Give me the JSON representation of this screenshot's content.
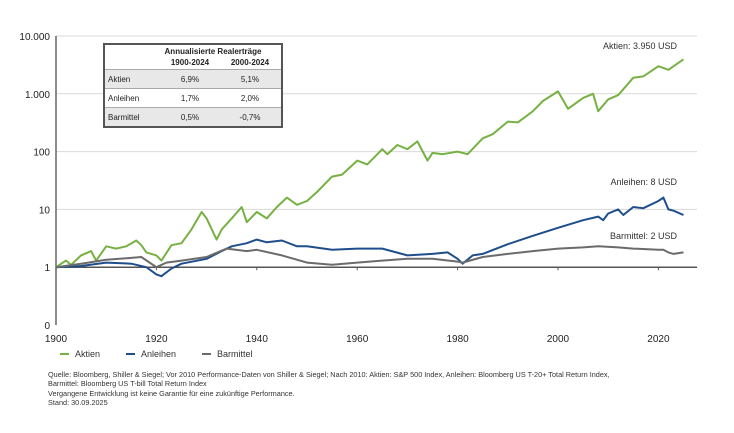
{
  "chart_data": {
    "type": "line",
    "y_scale": "log",
    "ylim": [
      0.1,
      10000
    ],
    "xlim": [
      1900,
      2027
    ],
    "y_ticks": [
      {
        "v": 10000,
        "label": "10.000"
      },
      {
        "v": 1000,
        "label": "1.000"
      },
      {
        "v": 100,
        "label": "100"
      },
      {
        "v": 10,
        "label": "10"
      },
      {
        "v": 1,
        "label": "1"
      },
      {
        "v": 0.1,
        "label": "0"
      }
    ],
    "x_ticks": [
      1900,
      1920,
      1940,
      1960,
      1980,
      2000,
      2020
    ],
    "grid": true,
    "legend_position": "bottom-left",
    "series": [
      {
        "name": "Aktien",
        "color": "#77b043",
        "end_label": "Aktien: 3.950 USD",
        "x": [
          1900,
          1902,
          1903,
          1905,
          1907,
          1908,
          1910,
          1912,
          1914,
          1916,
          1917,
          1918,
          1920,
          1921,
          1923,
          1925,
          1927,
          1929,
          1930,
          1932,
          1933,
          1935,
          1937,
          1938,
          1940,
          1942,
          1944,
          1946,
          1948,
          1950,
          1952,
          1955,
          1957,
          1960,
          1962,
          1965,
          1966,
          1968,
          1970,
          1972,
          1974,
          1975,
          1977,
          1980,
          1982,
          1985,
          1987,
          1990,
          1992,
          1995,
          1997,
          2000,
          2002,
          2005,
          2007,
          2008,
          2010,
          2012,
          2015,
          2017,
          2020,
          2022,
          2025
        ],
        "y": [
          1,
          1.3,
          1.1,
          1.6,
          1.9,
          1.3,
          2.3,
          2.1,
          2.3,
          2.9,
          2.4,
          1.8,
          1.6,
          1.3,
          2.4,
          2.6,
          4.5,
          9,
          7,
          3,
          4.5,
          7,
          11,
          6,
          9,
          7,
          11,
          16,
          12,
          14,
          20,
          37,
          40,
          70,
          60,
          110,
          90,
          130,
          110,
          150,
          70,
          95,
          90,
          100,
          90,
          170,
          200,
          330,
          320,
          500,
          750,
          1100,
          550,
          850,
          1000,
          500,
          800,
          950,
          1900,
          2000,
          3000,
          2600,
          3950
        ]
      },
      {
        "name": "Anleihen",
        "color": "#1f4e8c",
        "end_label": "Anleihen: 8 USD",
        "x": [
          1900,
          1905,
          1910,
          1915,
          1918,
          1920,
          1921,
          1923,
          1925,
          1930,
          1933,
          1935,
          1938,
          1940,
          1942,
          1945,
          1948,
          1950,
          1955,
          1960,
          1965,
          1970,
          1975,
          1978,
          1980,
          1981,
          1983,
          1985,
          1990,
          1995,
          2000,
          2005,
          2008,
          2009,
          2010,
          2012,
          2013,
          2015,
          2017,
          2020,
          2021,
          2022,
          2023,
          2025
        ],
        "y": [
          1,
          1.05,
          1.2,
          1.15,
          1.0,
          0.75,
          0.7,
          0.95,
          1.15,
          1.4,
          1.9,
          2.3,
          2.6,
          3.0,
          2.7,
          2.9,
          2.3,
          2.3,
          2.0,
          2.1,
          2.1,
          1.6,
          1.7,
          1.8,
          1.4,
          1.15,
          1.6,
          1.7,
          2.5,
          3.5,
          4.8,
          6.5,
          7.5,
          6.5,
          8.5,
          10,
          8,
          11,
          10.5,
          14,
          16,
          10,
          9.5,
          8
        ]
      },
      {
        "name": "Barmittel",
        "color": "#6b6b6b",
        "end_label": "Barmittel: 2 USD",
        "x": [
          1900,
          1905,
          1910,
          1915,
          1917,
          1920,
          1922,
          1925,
          1930,
          1934,
          1938,
          1940,
          1945,
          1950,
          1955,
          1960,
          1965,
          1970,
          1975,
          1980,
          1981,
          1985,
          1990,
          1995,
          2000,
          2005,
          2008,
          2012,
          2015,
          2020,
          2021,
          2022,
          2023,
          2025
        ],
        "y": [
          1,
          1.15,
          1.35,
          1.45,
          1.5,
          1.0,
          1.2,
          1.3,
          1.5,
          2.1,
          1.9,
          2.0,
          1.6,
          1.2,
          1.1,
          1.2,
          1.3,
          1.4,
          1.4,
          1.25,
          1.2,
          1.5,
          1.7,
          1.9,
          2.1,
          2.2,
          2.3,
          2.2,
          2.1,
          2.0,
          2.0,
          1.8,
          1.7,
          1.8
        ]
      }
    ]
  },
  "table": {
    "title": "Annualisierte Realerträge",
    "col1": "1900-2024",
    "col2": "2000-2024",
    "rows": [
      {
        "name": "Aktien",
        "v1": "6,9%",
        "v2": "5,1%"
      },
      {
        "name": "Anleihen",
        "v1": "1,7%",
        "v2": "2,0%"
      },
      {
        "name": "Barmittel",
        "v1": "0,5%",
        "v2": "-0,7%"
      }
    ]
  },
  "notes": {
    "line1": "Quelle: Bloomberg, Shiller & Siegel; Vor 2010 Performance-Daten von Shiller & Siegel; Nach 2010: Aktien: S&P 500 Index, Anleihen: Bloomberg US T-20+ Total Return Index,",
    "line2": "Barmittel: Bloomberg US T-bill Total Return Index",
    "line3": "Vergangene Entwicklung ist keine Garantie für eine zukünftige Performance.",
    "line4": "Stand: 30.09.2025"
  }
}
